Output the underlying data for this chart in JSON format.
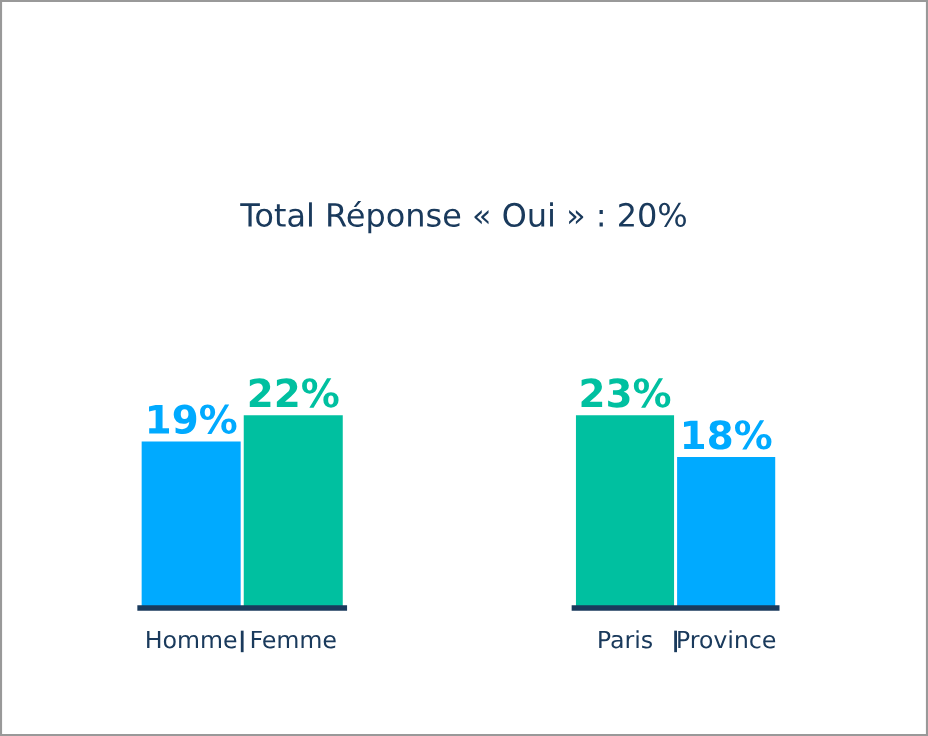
{
  "chart_data": [
    {
      "type": "bar",
      "title": "Total Réponse « Oui » : 20%",
      "categories": [
        "Homme",
        "Femme"
      ],
      "values": [
        19,
        22
      ],
      "colors": [
        "#00aaff",
        "#00c0a0"
      ],
      "value_labels": [
        "19%",
        "22%"
      ]
    },
    {
      "type": "bar",
      "categories": [
        "Paris",
        "Province"
      ],
      "values": [
        23,
        18
      ],
      "colors": [
        "#00c0a0",
        "#00aaff"
      ],
      "value_labels": [
        "23%",
        "18%"
      ]
    }
  ]
}
